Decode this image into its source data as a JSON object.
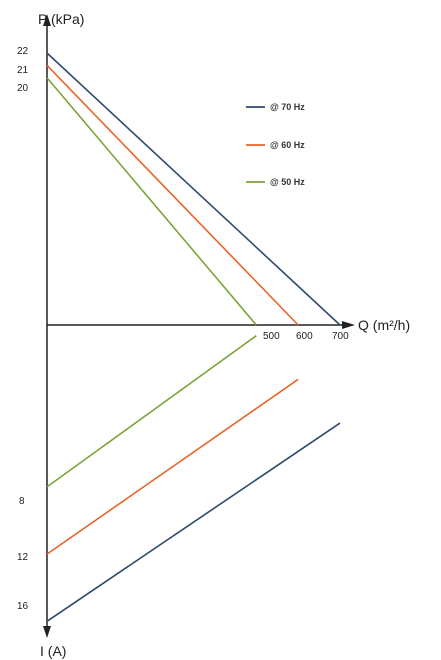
{
  "chart_data": {
    "type": "line",
    "colors": {
      "70": "#2e4a6b",
      "60": "#e8652a",
      "50": "#7da33a",
      "axis": "#222222"
    },
    "upper": {
      "ylabel": "P (kPa)",
      "xlabel": "Q (m²/h)",
      "y_ticks": [
        "22",
        "21",
        "20"
      ],
      "x_ticks": [
        "500",
        "600",
        "700"
      ],
      "series": [
        {
          "name": "@ 70 Hz",
          "key": "70",
          "points": [
            [
              0,
              22
            ],
            [
              700,
              0
            ]
          ]
        },
        {
          "name": "@ 60 Hz",
          "key": "60",
          "points": [
            [
              0,
              21
            ],
            [
              600,
              0
            ]
          ]
        },
        {
          "name": "@ 50 Hz",
          "key": "50",
          "points": [
            [
              0,
              20
            ],
            [
              500,
              0
            ]
          ]
        }
      ]
    },
    "lower": {
      "ylabel": "I (A)",
      "y_ticks": [
        "8",
        "12",
        "16"
      ],
      "series": [
        {
          "key": "70",
          "points": [
            [
              0,
              16
            ],
            [
              700,
              4.2
            ]
          ]
        },
        {
          "key": "60",
          "points": [
            [
              0,
              12
            ],
            [
              600,
              1.6
            ]
          ]
        },
        {
          "key": "50",
          "points": [
            [
              0,
              8
            ],
            [
              500,
              -1
            ]
          ]
        }
      ]
    }
  }
}
